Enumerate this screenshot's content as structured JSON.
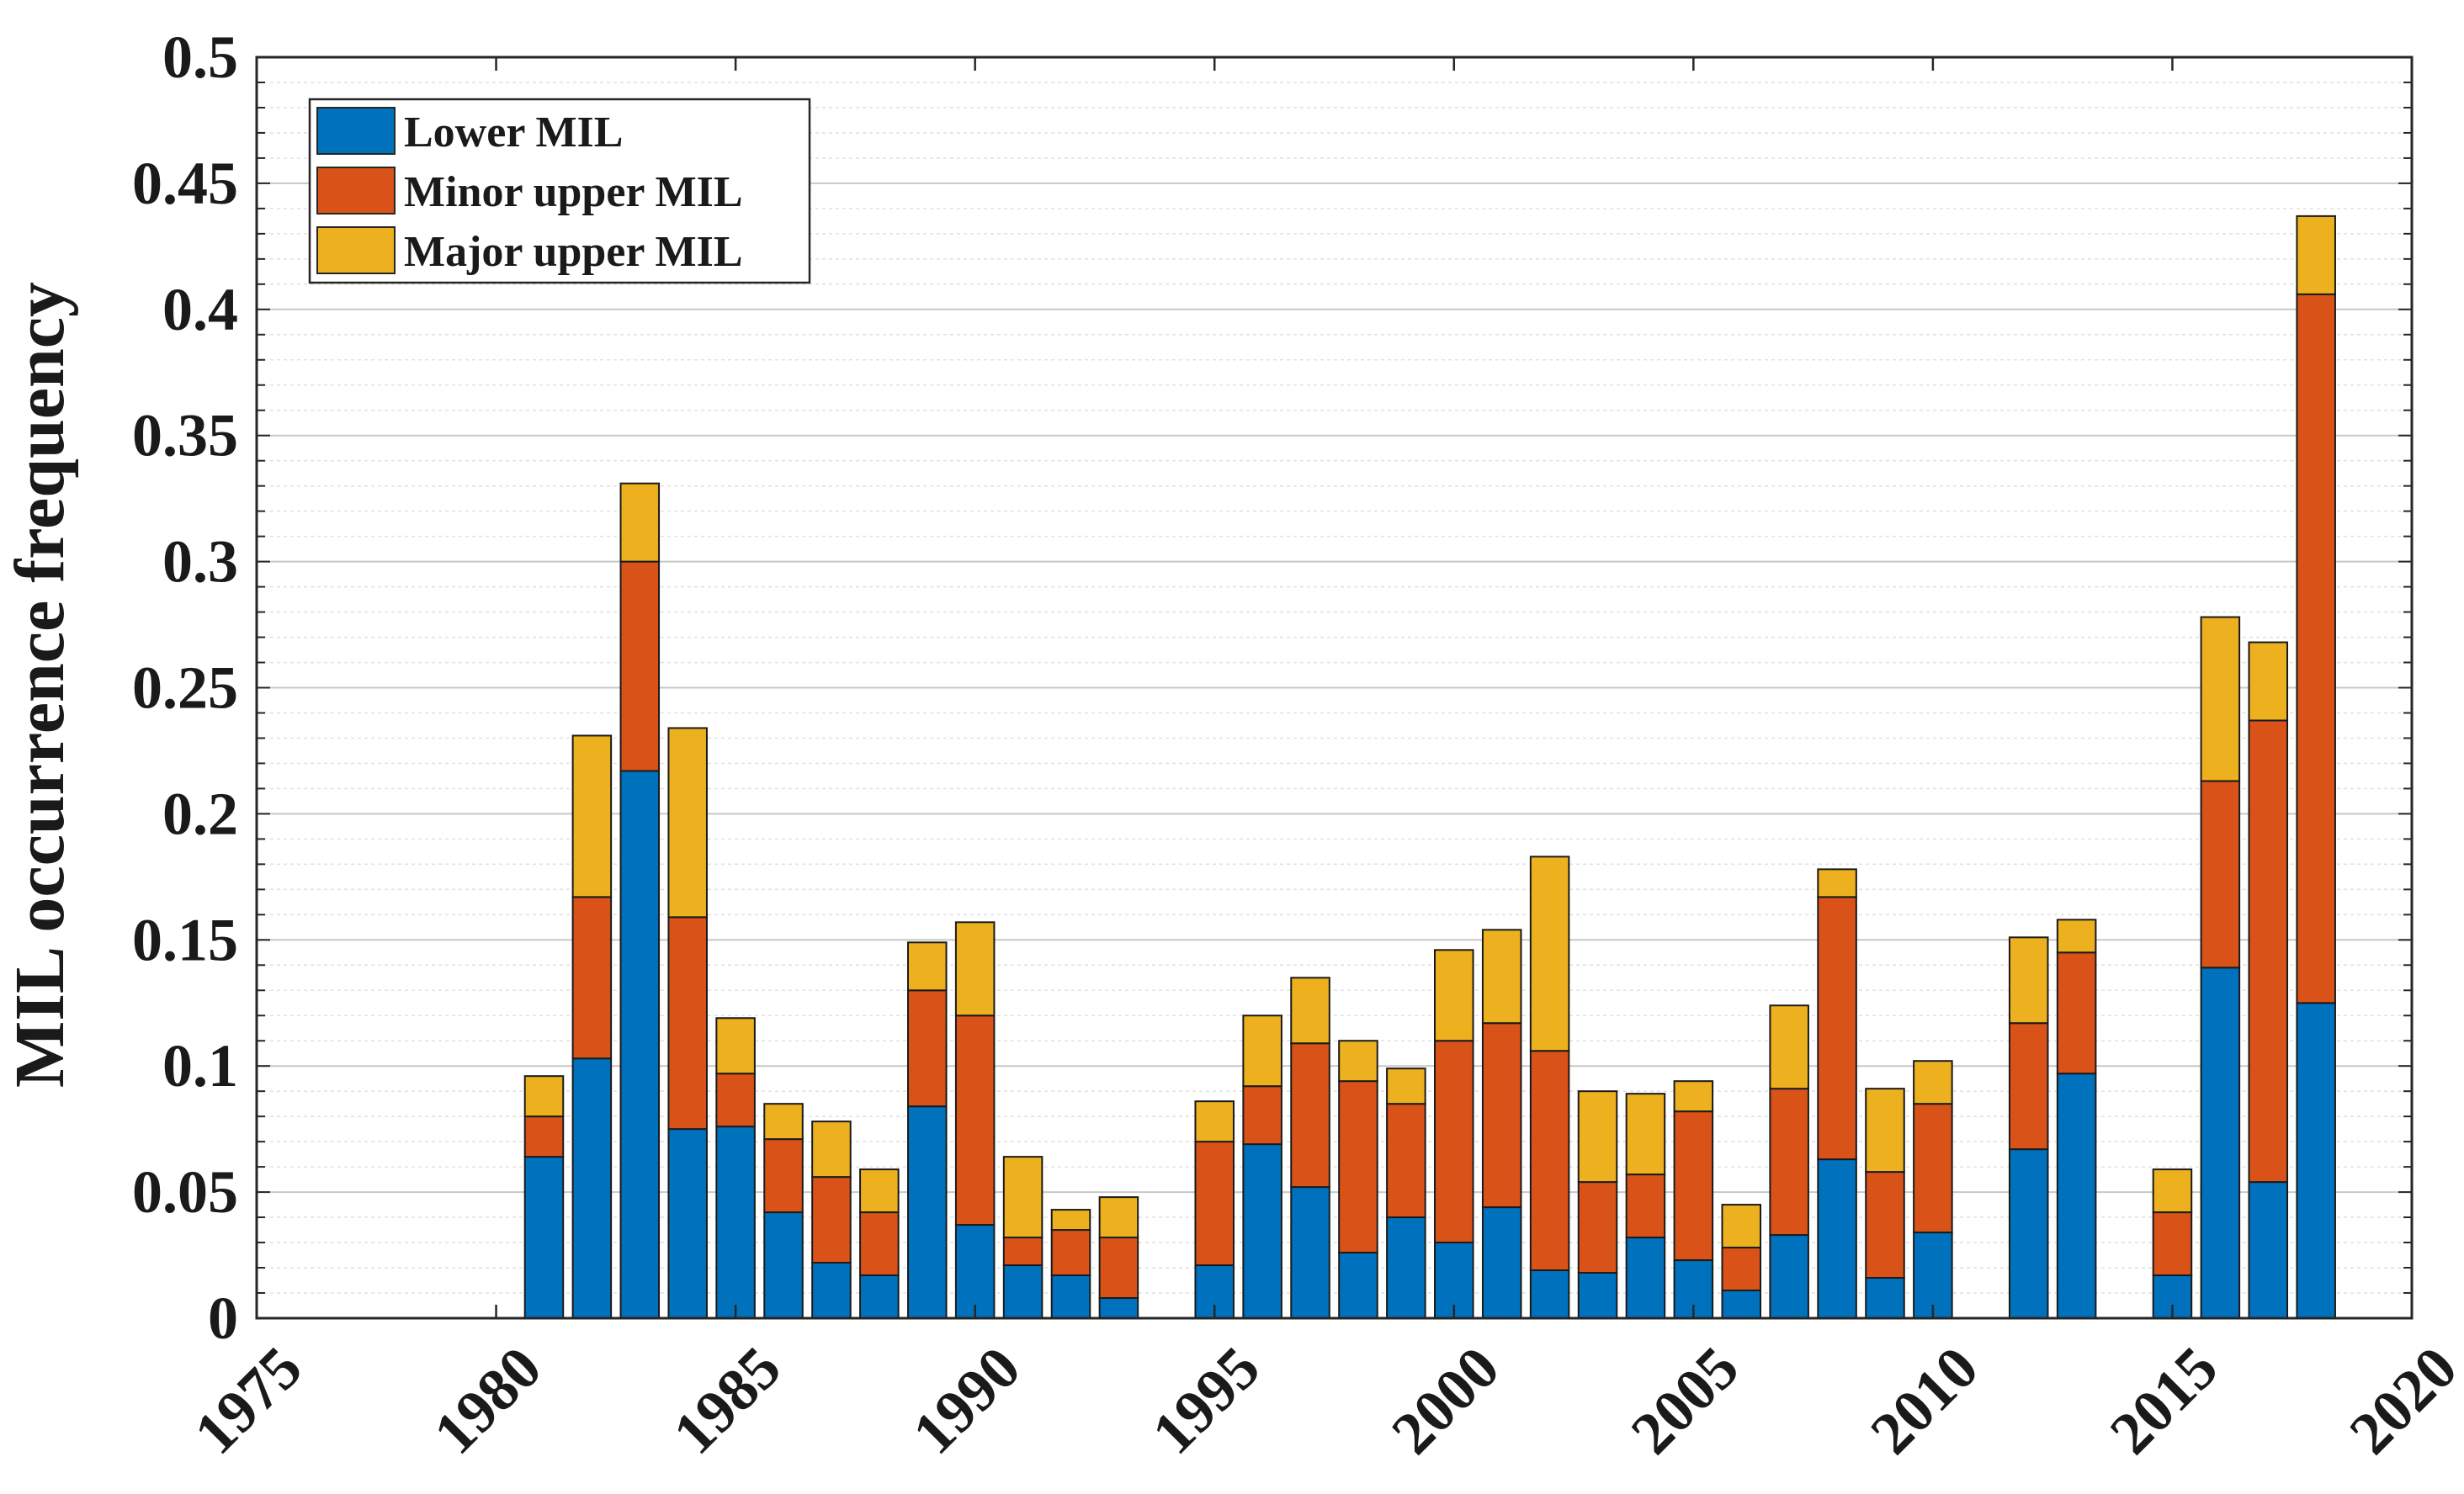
{
  "chart_data": {
    "type": "bar",
    "stacked": true,
    "title": "",
    "xlabel": "",
    "ylabel": "MIL occurrence frequency",
    "xlim": [
      1975,
      2020
    ],
    "ylim": [
      0,
      0.5
    ],
    "grid": true,
    "legend_position": "top-left",
    "x_ticks": [
      "1975",
      "1980",
      "1985",
      "1990",
      "1995",
      "2000",
      "2005",
      "2010",
      "2015",
      "2020"
    ],
    "y_ticks": [
      "0",
      "0.05",
      "0.1",
      "0.15",
      "0.2",
      "0.25",
      "0.3",
      "0.35",
      "0.4",
      "0.45",
      "0.5"
    ],
    "x": [
      1981,
      1982,
      1983,
      1984,
      1985,
      1986,
      1987,
      1988,
      1989,
      1990,
      1991,
      1992,
      1993,
      1995,
      1996,
      1997,
      1998,
      1999,
      2000,
      2001,
      2002,
      2003,
      2004,
      2005,
      2006,
      2007,
      2008,
      2009,
      2010,
      2012,
      2013,
      2015,
      2016,
      2017,
      2018
    ],
    "series": [
      {
        "name": "Lower MIL",
        "color": "#0072bd",
        "values": [
          0.064,
          0.103,
          0.217,
          0.075,
          0.076,
          0.042,
          0.022,
          0.017,
          0.084,
          0.037,
          0.021,
          0.017,
          0.008,
          0.021,
          0.069,
          0.052,
          0.026,
          0.04,
          0.03,
          0.044,
          0.019,
          0.018,
          0.032,
          0.023,
          0.011,
          0.033,
          0.063,
          0.016,
          0.034,
          0.067,
          0.097,
          0.017,
          0.139,
          0.054,
          0.125
        ]
      },
      {
        "name": "Minor upper MIL",
        "color": "#d95319",
        "values": [
          0.016,
          0.064,
          0.083,
          0.084,
          0.021,
          0.029,
          0.034,
          0.025,
          0.046,
          0.083,
          0.011,
          0.018,
          0.024,
          0.049,
          0.023,
          0.057,
          0.068,
          0.045,
          0.08,
          0.073,
          0.087,
          0.036,
          0.025,
          0.059,
          0.017,
          0.058,
          0.104,
          0.042,
          0.051,
          0.05,
          0.048,
          0.025,
          0.074,
          0.183,
          0.281
        ]
      },
      {
        "name": "Major upper MIL",
        "color": "#edb120",
        "values": [
          0.016,
          0.064,
          0.031,
          0.075,
          0.022,
          0.014,
          0.022,
          0.017,
          0.019,
          0.037,
          0.032,
          0.008,
          0.016,
          0.016,
          0.028,
          0.026,
          0.016,
          0.014,
          0.036,
          0.037,
          0.077,
          0.036,
          0.032,
          0.012,
          0.017,
          0.033,
          0.011,
          0.033,
          0.017,
          0.034,
          0.013,
          0.017,
          0.065,
          0.031,
          0.031
        ]
      }
    ]
  }
}
